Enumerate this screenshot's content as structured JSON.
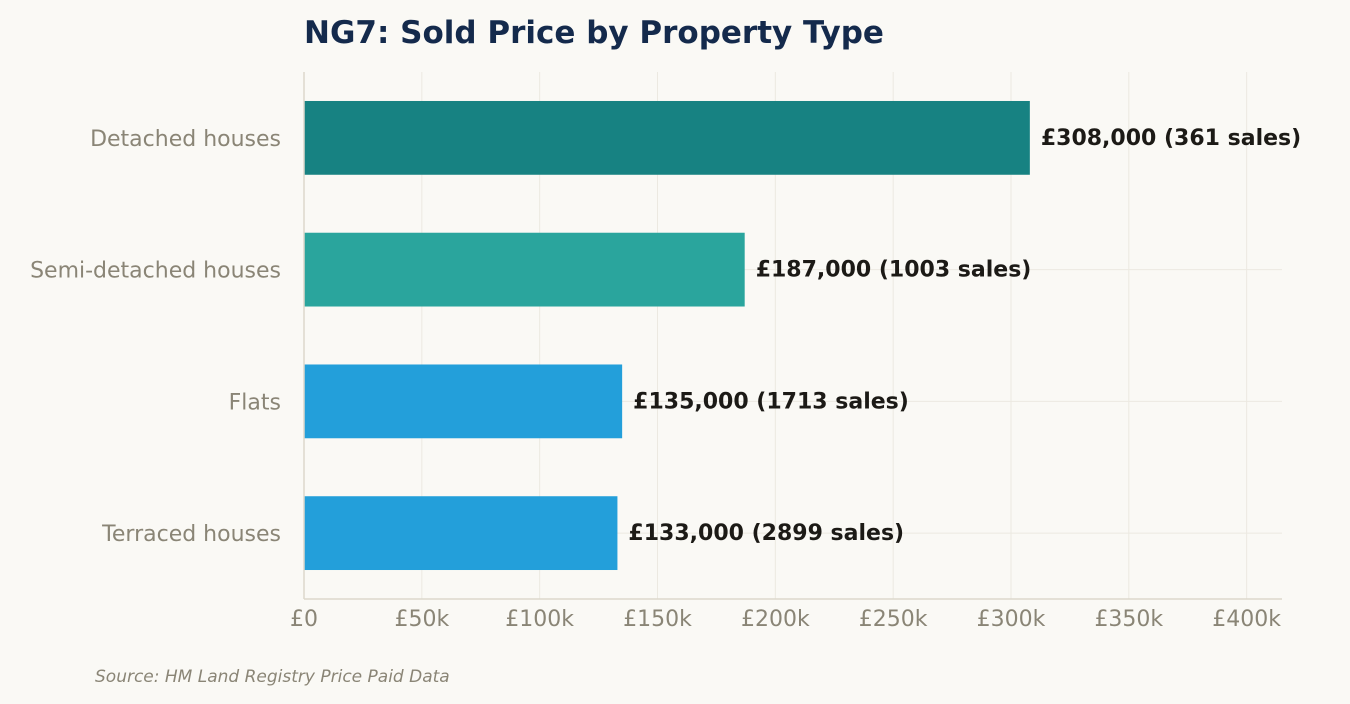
{
  "chart_data": {
    "type": "bar",
    "orientation": "horizontal",
    "title": "NG7: Sold Price by Property Type",
    "categories": [
      "Detached houses",
      "Semi-detached houses",
      "Flats",
      "Terraced houses"
    ],
    "values": [
      308000,
      187000,
      135000,
      133000
    ],
    "sales": [
      361,
      1003,
      1713,
      2899
    ],
    "data_labels": [
      "£308,000  (361 sales)",
      "£187,000  (1003 sales)",
      "£135,000  (1713 sales)",
      "£133,000  (2899 sales)"
    ],
    "colors": [
      "#178282",
      "#2aa59d",
      "#239fda",
      "#239fda"
    ],
    "xlim": [
      0,
      415000
    ],
    "xticks": [
      0,
      50000,
      100000,
      150000,
      200000,
      250000,
      300000,
      350000,
      400000
    ],
    "xtick_labels": [
      "£0",
      "£50k",
      "£100k",
      "£150k",
      "£200k",
      "£250k",
      "£300k",
      "£350k",
      "£400k"
    ],
    "xlabel": "",
    "ylabel": "",
    "grid": true,
    "source_note": "Source: HM Land Registry Price Paid Data"
  }
}
